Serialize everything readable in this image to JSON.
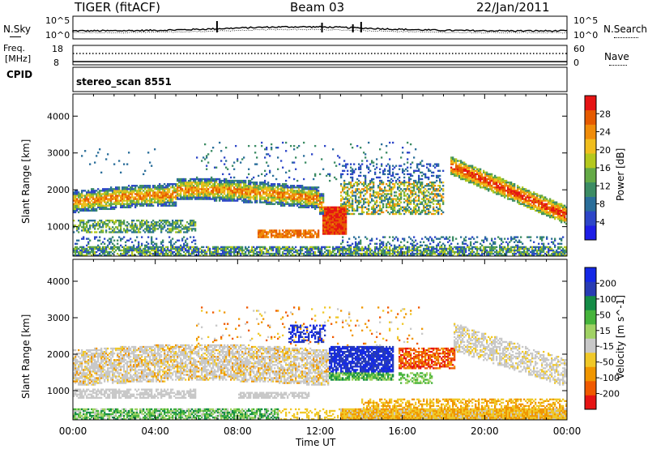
{
  "header": {
    "radar": "TIGER (fitACF)",
    "beam": "Beam 03",
    "date": "22/Jan/2011"
  },
  "noise_panel": {
    "left_label": "N.Sky",
    "right_label": "N.Search",
    "left_ticks": [
      "10^5",
      "10^0"
    ],
    "right_ticks": [
      "10^5",
      "10^0"
    ]
  },
  "freq_panel": {
    "left_label_1": "Freq.",
    "left_label_2": "[MHz]",
    "right_label": "Nave",
    "left_ticks": [
      "18",
      "8"
    ],
    "right_ticks": [
      "60",
      "0"
    ]
  },
  "cpid": {
    "label": "CPID",
    "value": "stereo_scan 8551"
  },
  "colors": {
    "power": [
      "#1e1ee6",
      "#2d46c8",
      "#2a6e9a",
      "#3c8c64",
      "#64aa46",
      "#b4c81e",
      "#f0be1e",
      "#f08c0a",
      "#e65a00",
      "#e61414"
    ],
    "velocity": [
      "#1428e6",
      "#283cb4",
      "#148c46",
      "#46b43c",
      "#a0d264",
      "#c8c8c8",
      "#f0c828",
      "#f09600",
      "#f05a00",
      "#e61414"
    ]
  },
  "chart_data": [
    {
      "type": "heatmap",
      "title": "",
      "xlabel": "Time UT",
      "ylabel": "Slant Range [km]",
      "x_ticks": [
        "00:00",
        "04:00",
        "08:00",
        "12:00",
        "16:00",
        "20:00",
        "00:00"
      ],
      "y_ticks": [
        "1000",
        "2000",
        "3000",
        "4000"
      ],
      "xlim": [
        0,
        24
      ],
      "ylim": [
        200,
        4600
      ],
      "colorbar": {
        "label": "Power [dB]",
        "ticks": [
          "4",
          "8",
          "12",
          "16",
          "20",
          "24",
          "28"
        ],
        "range": [
          0,
          30
        ]
      },
      "features": [
        {
          "start_h": 0.0,
          "end_h": 5.5,
          "range_from": 1400,
          "range_to": 1950,
          "level": "20-24"
        },
        {
          "start_h": 5.5,
          "end_h": 12.0,
          "range_from": 1300,
          "range_to": 2200,
          "level": "16-24"
        },
        {
          "start_h": 12.2,
          "end_h": 13.2,
          "range_from": 800,
          "range_to": 1600,
          "level": "28"
        },
        {
          "start_h": 18.5,
          "end_h": 24.0,
          "range_from": 1100,
          "range_to": 2600,
          "level": "20-28"
        },
        {
          "start_h": 0.0,
          "end_h": 24.0,
          "range_from": 200,
          "range_to": 500,
          "level": "8-16"
        }
      ]
    },
    {
      "type": "heatmap",
      "title": "",
      "xlabel": "Time UT",
      "ylabel": "Slant Range [km]",
      "x_ticks": [
        "00:00",
        "04:00",
        "08:00",
        "12:00",
        "16:00",
        "20:00",
        "00:00"
      ],
      "y_ticks": [
        "1000",
        "2000",
        "3000",
        "4000"
      ],
      "xlim": [
        0,
        24
      ],
      "ylim": [
        200,
        4600
      ],
      "colorbar": {
        "label": "Velocity [m s^-1]",
        "ticks": [
          "200",
          "100",
          "50",
          "15",
          "-15",
          "-50",
          "-100",
          "-200"
        ],
        "range": [
          -250,
          250
        ]
      },
      "features": [
        {
          "start_h": 0.0,
          "end_h": 12.0,
          "range_from": 1000,
          "range_to": 2100,
          "level": "-15 to 15"
        },
        {
          "start_h": 12.5,
          "end_h": 15.5,
          "range_from": 1300,
          "range_to": 2200,
          "level": "100 to 200"
        },
        {
          "start_h": 16.0,
          "end_h": 18.5,
          "range_from": 1600,
          "range_to": 2100,
          "level": "-50 to -200"
        },
        {
          "start_h": 14.0,
          "end_h": 24.0,
          "range_from": 200,
          "range_to": 700,
          "level": "-15 to -50"
        }
      ]
    }
  ]
}
